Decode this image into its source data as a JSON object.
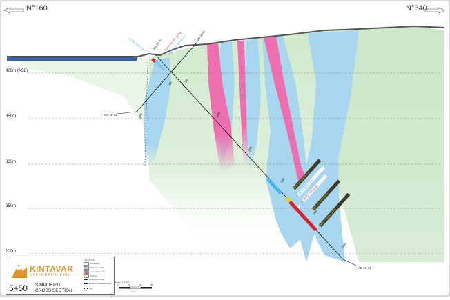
{
  "azimuth_left": "N°160",
  "azimuth_right": "N°340",
  "elevation_labels": [
    "400m (ASL)",
    "350m",
    "300m",
    "250m",
    "200m"
  ],
  "drillholes": {
    "ms_18_42": "MS-18-42",
    "ms_18_41": "MS-18-41",
    "ms_18_41_collar": "MS-18-41",
    "ms_18_42_collar": "MS-18-42"
  },
  "depth_ticks": {
    "h42": [
      "50",
      "100"
    ],
    "h41": [
      "50",
      "100",
      "150",
      "200",
      "250",
      "300"
    ]
  },
  "assay_labels": {
    "upper_red": "0.51% Cu, 0.7 g/t Ag",
    "upper_blue": "0.15% Cu over 4.0 m",
    "upper_left_blue": "0.12% Cu/4.0 m",
    "lower_1": "0.05% Cu over 25.0 m",
    "lower_2": "0.33% Cu over 9.0 m",
    "lower_3": "0.11% Cu, 0.9 g/t Ag",
    "lower_4": "0.08% Cu over 8.0 m",
    "lower_5": "0.09% Cu over 13.0 m"
  },
  "legend": {
    "title": "LITHOLOGY",
    "items": [
      "Overburden",
      "Mineralized Mafic",
      "Late Intrusive Dike",
      "Intrusive",
      "Lithological contact",
      "Expected lithological contact",
      "Fault"
    ]
  },
  "logo": {
    "name": "KINTAVAR",
    "sub": "EXPLORATION INC"
  },
  "section": {
    "number": "5+50",
    "title_1": "SIMPLIFIED",
    "title_2": "CROSS SECTION"
  },
  "scale": {
    "label": "Scale: 1:2000",
    "ticks": [
      "0",
      "10",
      "20",
      "30"
    ],
    "unit": "meters"
  },
  "colors": {
    "green": "#d4ecd2",
    "blue": "#a9d6ef",
    "pink": "#ee6fb0",
    "red": "#d6232c",
    "lake": "#3d5fa3",
    "logo": "#e0952a"
  }
}
